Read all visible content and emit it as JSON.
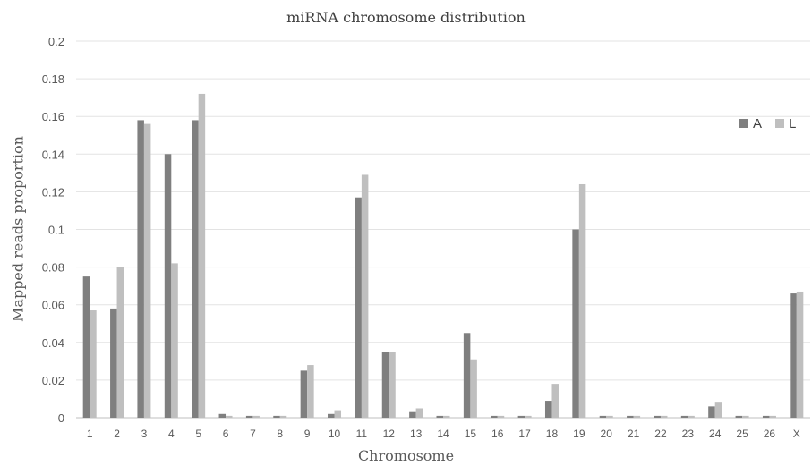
{
  "chart_data": {
    "type": "bar",
    "title": "miRNA chromosome distribution",
    "xlabel": "Chromosome",
    "ylabel": "Mapped reads proportion",
    "ylim": [
      0,
      0.2
    ],
    "yticks": [
      "0",
      "0.02",
      "0.04",
      "0.06",
      "0.08",
      "0.1",
      "0.12",
      "0.14",
      "0.16",
      "0.18",
      "0.2"
    ],
    "grid": true,
    "legend_position": "top-right",
    "categories": [
      "1",
      "2",
      "3",
      "4",
      "5",
      "6",
      "7",
      "8",
      "9",
      "10",
      "11",
      "12",
      "13",
      "14",
      "15",
      "16",
      "17",
      "18",
      "19",
      "20",
      "21",
      "22",
      "23",
      "24",
      "25",
      "26",
      "X"
    ],
    "series": [
      {
        "name": "A",
        "color": "#7f7f7f",
        "values": [
          0.075,
          0.058,
          0.158,
          0.14,
          0.158,
          0.002,
          0.001,
          0.001,
          0.025,
          0.002,
          0.117,
          0.035,
          0.003,
          0.001,
          0.045,
          0.001,
          0.001,
          0.009,
          0.1,
          0.001,
          0.001,
          0.001,
          0.001,
          0.006,
          0.001,
          0.001,
          0.066
        ]
      },
      {
        "name": "L",
        "color": "#bfbfbf",
        "values": [
          0.057,
          0.08,
          0.156,
          0.082,
          0.172,
          0.001,
          0.001,
          0.001,
          0.028,
          0.004,
          0.129,
          0.035,
          0.005,
          0.001,
          0.031,
          0.001,
          0.001,
          0.018,
          0.124,
          0.001,
          0.001,
          0.001,
          0.001,
          0.008,
          0.001,
          0.001,
          0.067
        ]
      }
    ]
  }
}
